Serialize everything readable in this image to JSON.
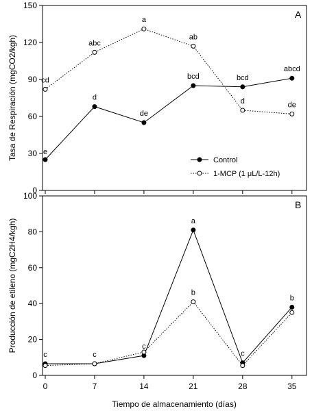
{
  "chart_data": [
    {
      "panel_label": "A",
      "type": "line",
      "ylabel": "Tasa de Respiración  (mgCO2/kgh)",
      "ylim": [
        0,
        150
      ],
      "yticks": [
        0,
        30,
        60,
        90,
        120,
        150
      ],
      "x": [
        0,
        7,
        14,
        21,
        28,
        35
      ],
      "series": [
        {
          "name": "Control",
          "values": [
            25,
            68,
            55,
            85,
            84,
            91
          ],
          "labels": [
            "e",
            "d",
            "de",
            "bcd",
            "bcd",
            "abcd"
          ],
          "style": "solid",
          "marker": "filled"
        },
        {
          "name": "1-MCP (1 μL/L-12h)",
          "values": [
            82,
            112,
            131,
            117,
            65,
            62
          ],
          "labels": [
            "cd",
            "abc",
            "a",
            "ab",
            "d",
            "de"
          ],
          "style": "dotted",
          "marker": "open"
        }
      ],
      "legend_position": "bottom-right"
    },
    {
      "panel_label": "B",
      "type": "line",
      "ylabel": "Producción de etileno (mgC2H4/kgh)",
      "xlabel": "Tiempo de almacenamiento (días)",
      "ylim": [
        0,
        100
      ],
      "yticks": [
        0,
        20,
        40,
        60,
        80,
        100
      ],
      "x": [
        0,
        7,
        14,
        21,
        28,
        35
      ],
      "xticks": [
        "0",
        "7",
        "14",
        "21",
        "28",
        "35"
      ],
      "series": [
        {
          "name": "Control",
          "values": [
            6.5,
            6.5,
            11,
            81,
            7,
            38
          ],
          "labels": [
            "c",
            "c",
            "c",
            "a",
            "c",
            "b"
          ],
          "style": "solid",
          "marker": "filled"
        },
        {
          "name": "1-MCP (1 μL/L-12h)",
          "values": [
            5.5,
            6.5,
            13,
            41,
            5.5,
            35
          ],
          "labels": [
            "",
            "",
            "",
            "b",
            "",
            ""
          ],
          "style": "dotted",
          "marker": "open"
        }
      ]
    }
  ]
}
